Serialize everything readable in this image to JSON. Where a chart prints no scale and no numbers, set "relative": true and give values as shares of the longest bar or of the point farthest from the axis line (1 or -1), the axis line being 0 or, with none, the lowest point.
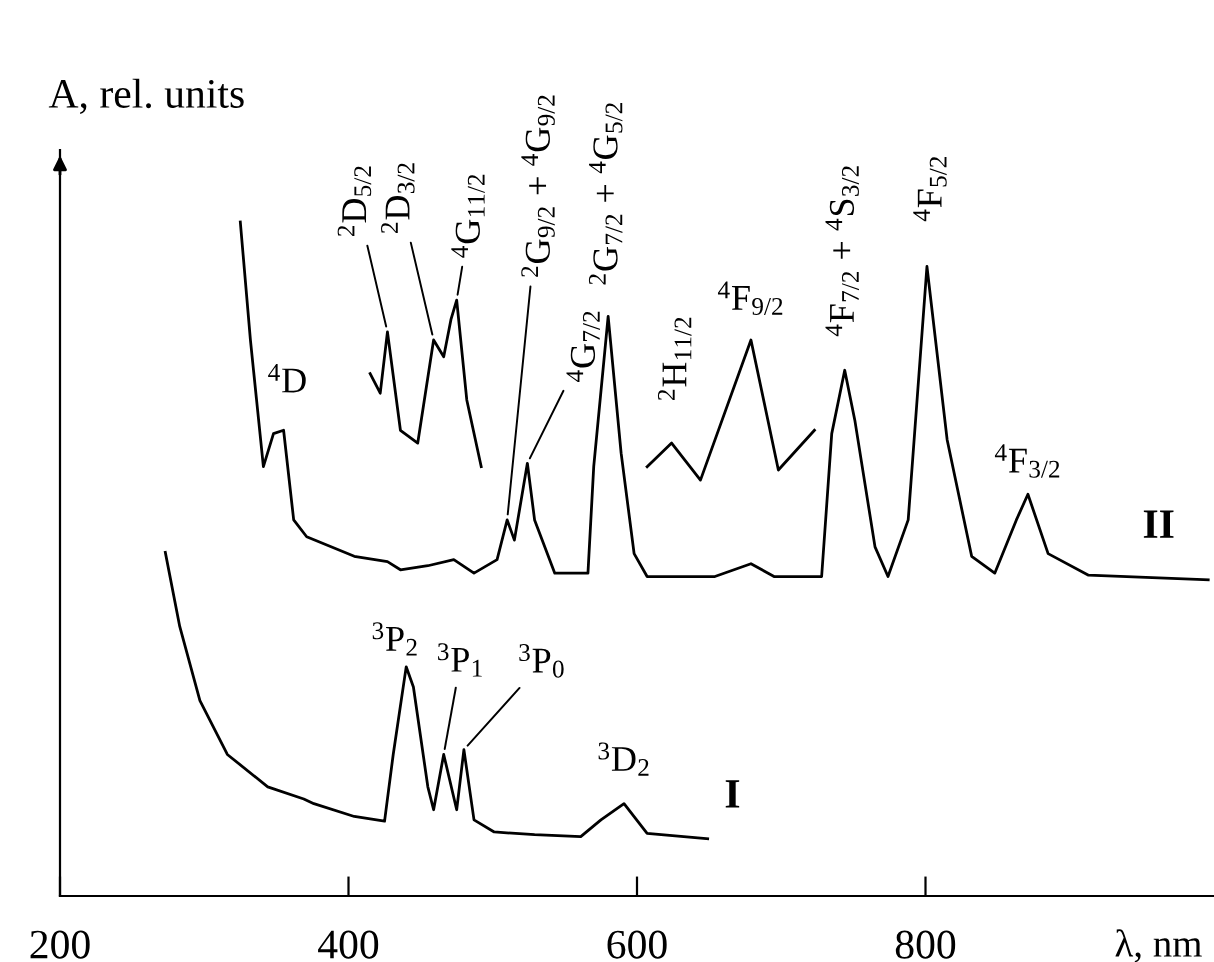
{
  "chart_data": {
    "type": "line",
    "relative": true,
    "xlabel": "λ, nm",
    "ylabel": "A, rel. units",
    "xlim": [
      200,
      1000
    ],
    "xticks": [
      200,
      400,
      600,
      800
    ],
    "grid": false,
    "marker": "none",
    "line_style": "solid",
    "series": [
      {
        "name": "I",
        "color": "#000000",
        "x": [
          273,
          283,
          297,
          316,
          344,
          369,
          376,
          404,
          425,
          431,
          440,
          445,
          455,
          459,
          466,
          475,
          480,
          487,
          501,
          529,
          561,
          575,
          591,
          607,
          649
        ],
        "values": [
          0.51,
          0.4,
          0.29,
          0.21,
          0.162,
          0.144,
          0.137,
          0.118,
          0.111,
          0.21,
          0.34,
          0.31,
          0.162,
          0.128,
          0.21,
          0.128,
          0.217,
          0.113,
          0.095,
          0.091,
          0.088,
          0.113,
          0.137,
          0.093,
          0.085
        ]
      },
      {
        "name": "II",
        "color": "#000000",
        "x": [
          325,
          332,
          341,
          348,
          355,
          362,
          371,
          404,
          427,
          436,
          455,
          473,
          487,
          503,
          510,
          515,
          524,
          529,
          543,
          566,
          570,
          580,
          589,
          598,
          607,
          654,
          679,
          695,
          728,
          735,
          744,
          751,
          765,
          774,
          788,
          801,
          815,
          832,
          848,
          863,
          871,
          885,
          913,
          996
        ],
        "values": [
          1.0,
          0.825,
          0.637,
          0.686,
          0.691,
          0.558,
          0.533,
          0.504,
          0.496,
          0.484,
          0.49,
          0.499,
          0.479,
          0.499,
          0.558,
          0.528,
          0.642,
          0.558,
          0.479,
          0.479,
          0.637,
          0.86,
          0.657,
          0.508,
          0.474,
          0.474,
          0.493,
          0.474,
          0.474,
          0.686,
          0.78,
          0.706,
          0.518,
          0.474,
          0.558,
          0.934,
          0.677,
          0.504,
          0.479,
          0.558,
          0.596,
          0.508,
          0.476,
          0.469
        ]
      },
      {
        "color": "#000000",
        "x": [
          415,
          422,
          427,
          436,
          448,
          459,
          466,
          471,
          475,
          482,
          492
        ],
        "values": [
          0.775,
          0.746,
          0.837,
          0.691,
          0.672,
          0.825,
          0.8,
          0.855,
          0.884,
          0.736,
          0.637
        ]
      },
      {
        "color": "#000000",
        "x": [
          607,
          624,
          644,
          679,
          698,
          723
        ],
        "values": [
          0.637,
          0.672,
          0.617,
          0.825,
          0.632,
          0.691
        ]
      }
    ],
    "annotations": [
      {
        "text": "$^{2}$D$_{5/2}$",
        "x": 427,
        "y": 0.837
      },
      {
        "text": "$^{2}$D$_{3/2}$",
        "x": 459,
        "y": 0.825
      },
      {
        "text": "$^{4}$G$_{11/2}$",
        "x": 475,
        "y": 0.884
      },
      {
        "text": "$^{2}$G$_{9/2}$ + $^{4}$G$_{9/2}$",
        "x": 510,
        "y": 0.558
      },
      {
        "text": "$^{4}$G$_{7/2}$",
        "x": 524,
        "y": 0.642
      },
      {
        "text": "$^{2}$G$_{7/2}$ + $^{4}$G$_{5/2}$",
        "x": 580,
        "y": 0.86
      },
      {
        "text": "$^{2}$H$_{11/2}$",
        "x": 624,
        "y": 0.672
      },
      {
        "text": "$^{4}$F$_{9/2}$",
        "x": 679,
        "y": 0.825
      },
      {
        "text": "$^{4}$F$_{7/2}$ + $^{4}$S$_{3/2}$",
        "x": 744,
        "y": 0.78
      },
      {
        "text": "$^{4}$F$_{5/2}$",
        "x": 801,
        "y": 0.934
      },
      {
        "text": "$^{4}$F$_{3/2}$",
        "x": 871,
        "y": 0.596
      },
      {
        "text": "$^{4}$D",
        "x": 348,
        "y": 0.686
      },
      {
        "text": "$^{3}$P$_{2}$",
        "x": 440,
        "y": 0.34
      },
      {
        "text": "$^{3}$P$_{1}$",
        "x": 466,
        "y": 0.21
      },
      {
        "text": "$^{3}$P$_{0}$",
        "x": 480,
        "y": 0.217
      },
      {
        "text": "$^{3}$D$_{2}$",
        "x": 591,
        "y": 0.137
      }
    ]
  }
}
